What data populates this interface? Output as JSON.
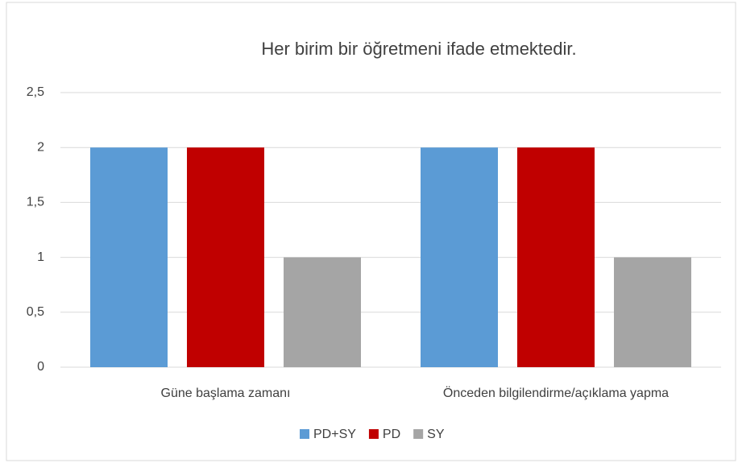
{
  "chart_data": {
    "type": "bar",
    "title": "Her birim bir öğretmeni ifade etmektedir.",
    "categories": [
      "Güne başlama zamanı",
      "Önceden bilgilendirme/açıklama yapma"
    ],
    "series": [
      {
        "name": "PD+SY",
        "color": "#5b9bd5",
        "values": [
          2,
          2
        ]
      },
      {
        "name": "PD",
        "color": "#c00000",
        "values": [
          2,
          2
        ]
      },
      {
        "name": "SY",
        "color": "#a5a5a5",
        "values": [
          1,
          1
        ]
      }
    ],
    "ylim": [
      0,
      2.5
    ],
    "yticks": [
      0,
      {
        "value": 0.5,
        "label": "0,5"
      },
      1,
      {
        "value": 1.5,
        "label": "1,5"
      },
      2,
      {
        "value": 2.5,
        "label": "2,5"
      }
    ],
    "grid": true,
    "legend": "bottom"
  }
}
